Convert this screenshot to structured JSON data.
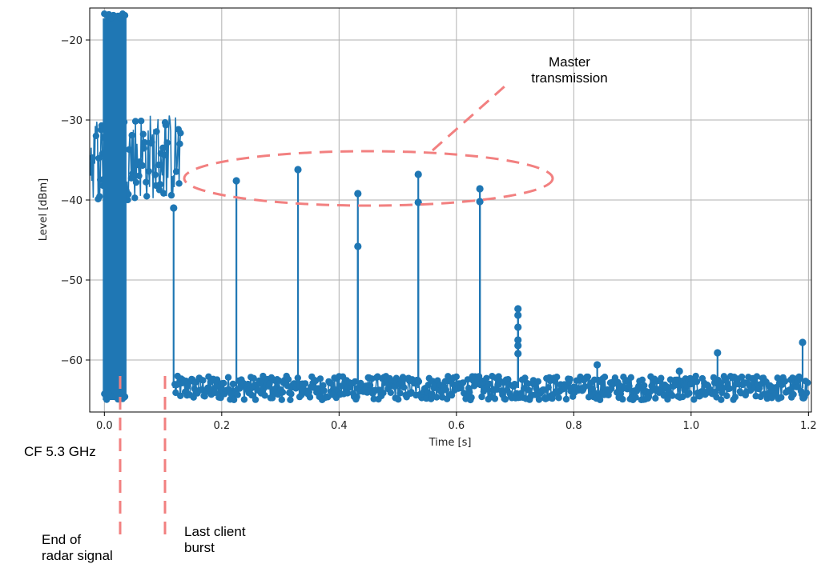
{
  "chart_data": {
    "type": "scatter",
    "style": "stem-line-with-markers",
    "xlabel": "Time [s]",
    "ylabel": "Level [dBm]",
    "xlim": [
      -0.025,
      1.205
    ],
    "ylim": [
      -66.5,
      -16.0
    ],
    "xticks": [
      0.0,
      0.2,
      0.4,
      0.6,
      0.8,
      1.0,
      1.2
    ],
    "xtick_labels": [
      "0.0",
      "0.2",
      "0.4",
      "0.6",
      "0.8",
      "1.0",
      "1.2"
    ],
    "yticks": [
      -20,
      -30,
      -40,
      -50,
      -60
    ],
    "ytick_labels": [
      "−20",
      "−30",
      "−40",
      "−50",
      "−60"
    ],
    "grid": true,
    "series_color": "#1f77b4",
    "annotation_color": "#f28080",
    "noise_floor": {
      "min": -65.0,
      "max": -62.0,
      "x_start": 0.12,
      "x_end": 1.2
    },
    "radar_segment": {
      "x_start": 0.0,
      "x_end": 0.035,
      "min": -65.0,
      "max": -17.3
    },
    "client_segment": {
      "x_start": -0.025,
      "x_end": 0.13,
      "min": -40.0,
      "max": -29.0
    },
    "peaks": [
      {
        "x": 0.118,
        "y": -41.0
      },
      {
        "x": 0.225,
        "y": -37.6
      },
      {
        "x": 0.33,
        "y": -36.2
      },
      {
        "x": 0.432,
        "y": -39.2
      },
      {
        "x": 0.432,
        "y": -45.8
      },
      {
        "x": 0.535,
        "y": -36.8
      },
      {
        "x": 0.535,
        "y": -40.3
      },
      {
        "x": 0.64,
        "y": -38.6
      },
      {
        "x": 0.64,
        "y": -40.2
      },
      {
        "x": 0.705,
        "y": -53.6
      },
      {
        "x": 0.705,
        "y": -54.4
      },
      {
        "x": 0.705,
        "y": -55.9
      },
      {
        "x": 0.705,
        "y": -57.5
      },
      {
        "x": 0.705,
        "y": -58.2
      },
      {
        "x": 0.705,
        "y": -59.2
      },
      {
        "x": 0.84,
        "y": -60.6
      },
      {
        "x": 0.98,
        "y": -61.4
      },
      {
        "x": 1.045,
        "y": -59.1
      },
      {
        "x": 1.19,
        "y": -57.8
      }
    ]
  },
  "annotations": {
    "master": {
      "line1": "Master",
      "line2": "transmission"
    },
    "cf": "CF 5.3 GHz",
    "radar_end": {
      "line1": "End of",
      "line2": "radar signal"
    },
    "last_client": {
      "line1": "Last client",
      "line2": "burst"
    }
  }
}
